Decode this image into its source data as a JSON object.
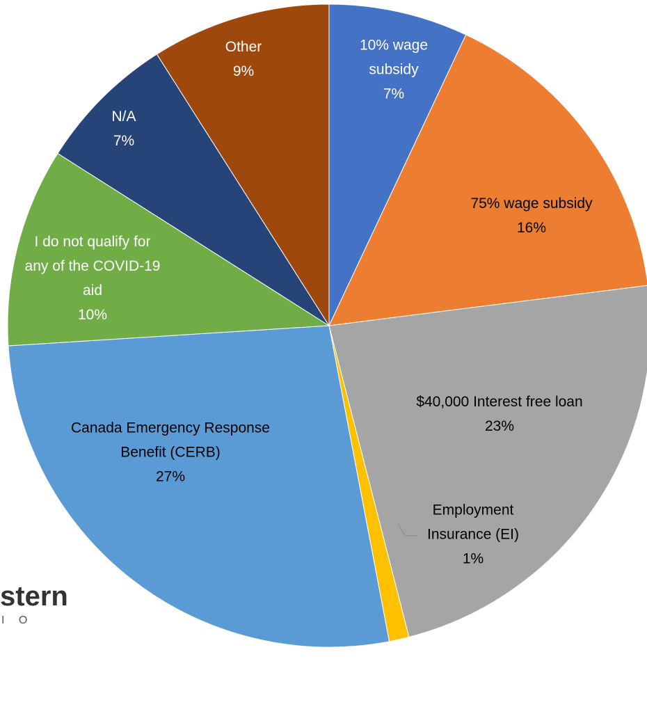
{
  "chart_data": {
    "type": "pie",
    "categories": [
      "10% wage subsidy",
      "75% wage subsidy",
      "$40,000 Interest free loan",
      "Employment Insurance (EI)",
      "Canada Emergency Response Benefit (CERB)",
      "I do not qualify for any of the COVID-19 aid",
      "N/A",
      "Other"
    ],
    "values": [
      7,
      16,
      23,
      1,
      27,
      10,
      7,
      9
    ],
    "value_labels": [
      "7%",
      "16%",
      "23%",
      "1%",
      "27%",
      "10%",
      "7%",
      "9%"
    ],
    "colors": [
      "#4472c4",
      "#ed7d31",
      "#a5a5a5",
      "#ffc000",
      "#5b9bd5",
      "#70ad47",
      "#264478",
      "#9e480e"
    ]
  },
  "logo": {
    "text": "stern",
    "subtext": "I O"
  }
}
